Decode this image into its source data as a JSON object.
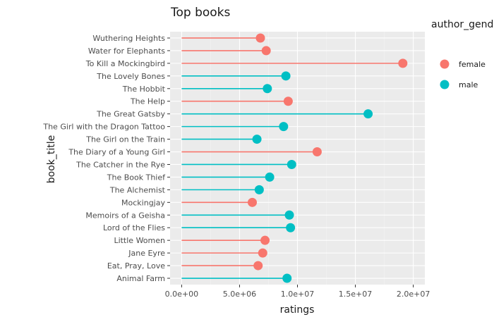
{
  "chart_data": {
    "type": "lollipop",
    "title": "Top books",
    "xlabel": "ratings",
    "ylabel": "book_title",
    "xlim": [
      -1000000,
      21000000
    ],
    "xticks": [
      0,
      5000000,
      10000000,
      15000000,
      20000000
    ],
    "xtick_labels": [
      "0.0e+00",
      "5.0e+06",
      "1.0e+07",
      "1.5e+07",
      "2.0e+07"
    ],
    "legend_title": "author_gender",
    "legend": [
      {
        "name": "female",
        "color": "#F8766D"
      },
      {
        "name": "male",
        "color": "#00BFC4"
      }
    ],
    "categories": [
      "Wuthering Heights",
      "Water for Elephants",
      "To Kill a Mockingbird",
      "The Lovely Bones",
      "The Hobbit",
      "The Help",
      "The Great Gatsby",
      "The Girl with the Dragon Tattoo",
      "The Girl on the Train",
      "The Diary of a Young Girl",
      "The Catcher in the Rye",
      "The Book Thief",
      "The Alchemist",
      "Mockingjay",
      "Memoirs of a Geisha",
      "Lord of the Flies",
      "Little Women",
      "Jane Eyre",
      "Eat, Pray, Love",
      "Animal Farm"
    ],
    "values": [
      6800000,
      7300000,
      19100000,
      9000000,
      7400000,
      9200000,
      16100000,
      8800000,
      6500000,
      11700000,
      9500000,
      7600000,
      6700000,
      6100000,
      9300000,
      9400000,
      7200000,
      7000000,
      6600000,
      9100000
    ],
    "groups": [
      "female",
      "female",
      "female",
      "male",
      "male",
      "female",
      "male",
      "male",
      "male",
      "female",
      "male",
      "male",
      "male",
      "female",
      "male",
      "male",
      "female",
      "female",
      "female",
      "male"
    ],
    "grid": true
  }
}
